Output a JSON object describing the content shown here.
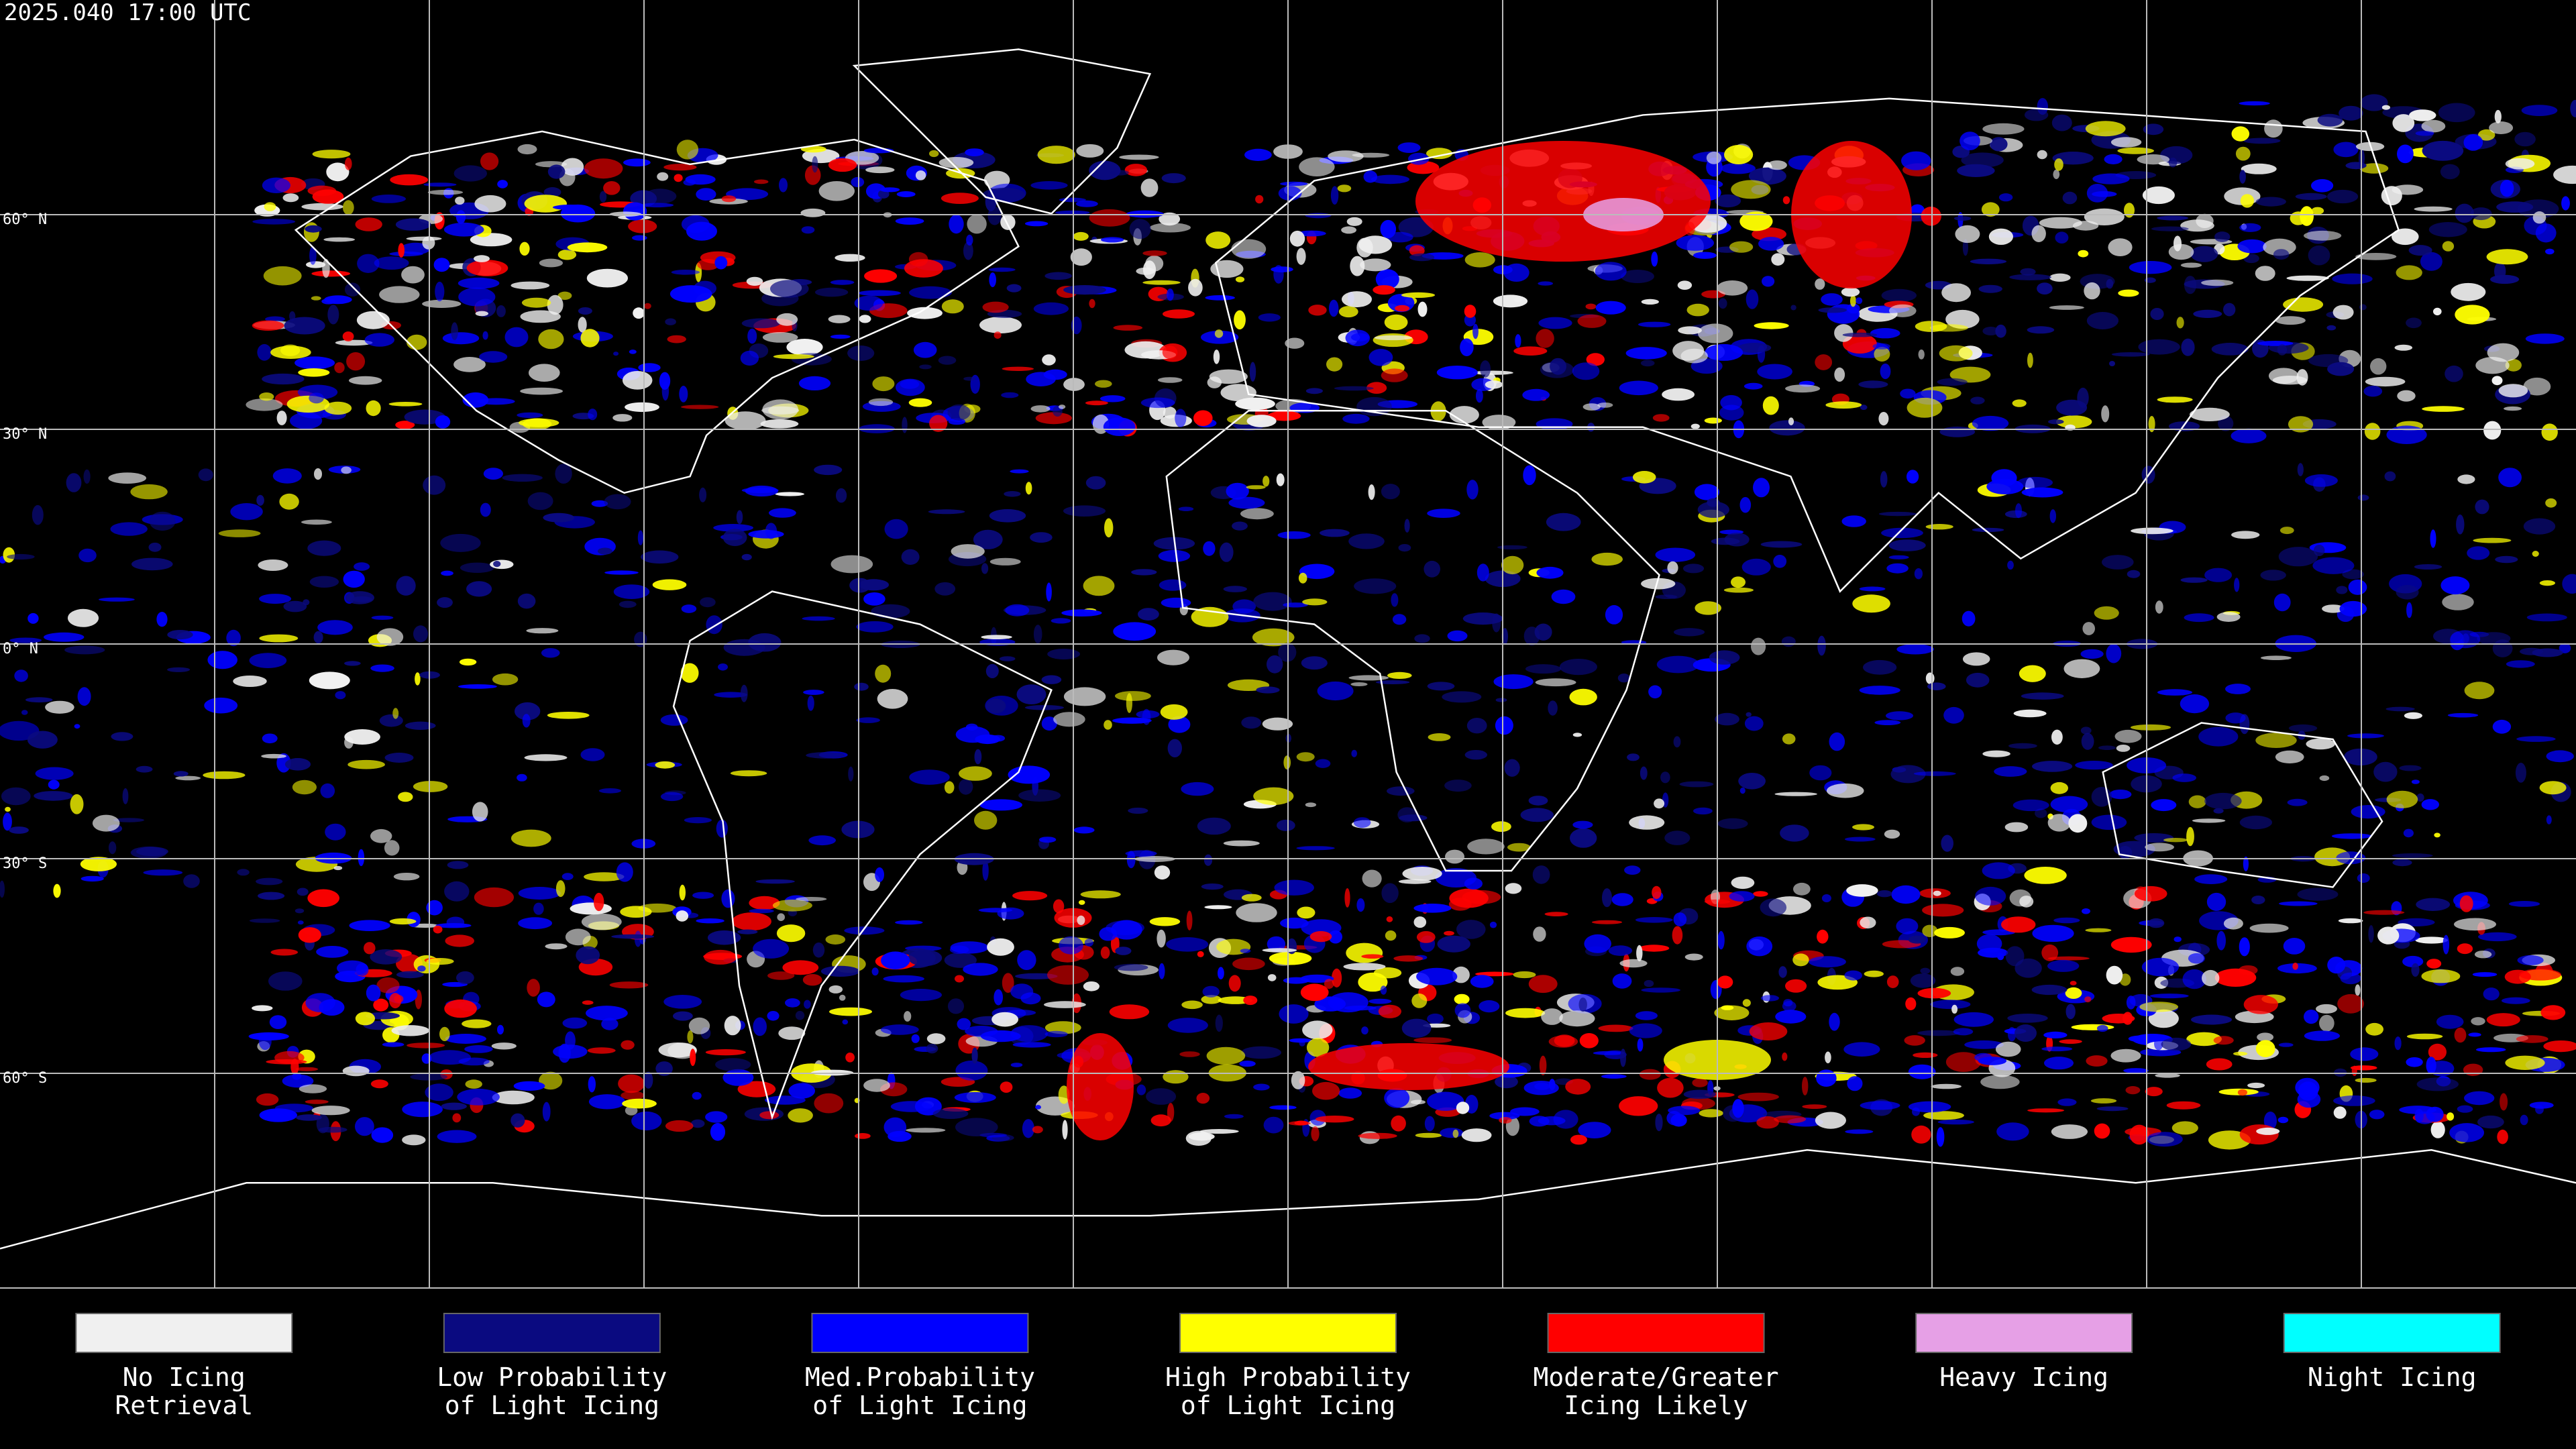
{
  "timestamp": "2025.040 17:00 UTC",
  "latitude_labels": [
    {
      "value": 60,
      "label": "60° N"
    },
    {
      "value": 30,
      "label": "30° N"
    },
    {
      "value": 0,
      "label": "0° N"
    },
    {
      "value": -30,
      "label": "30° S"
    },
    {
      "value": -60,
      "label": "60° S"
    }
  ],
  "legend": [
    {
      "label": [
        "No Icing",
        "Retrieval"
      ],
      "color": "#f0f0f0"
    },
    {
      "label": [
        "Low Probability",
        "of Light Icing"
      ],
      "color": "#0a0a80"
    },
    {
      "label": [
        "Med.Probability",
        "of Light Icing"
      ],
      "color": "#0000ff"
    },
    {
      "label": [
        "High Probability",
        "of Light Icing"
      ],
      "color": "#ffff00"
    },
    {
      "label": [
        "Moderate/Greater",
        "Icing Likely"
      ],
      "color": "#ff0000"
    },
    {
      "label": [
        "Heavy Icing"
      ],
      "color": "#e6a0e6"
    },
    {
      "label": [
        "Night Icing"
      ],
      "color": "#00ffff"
    }
  ]
}
